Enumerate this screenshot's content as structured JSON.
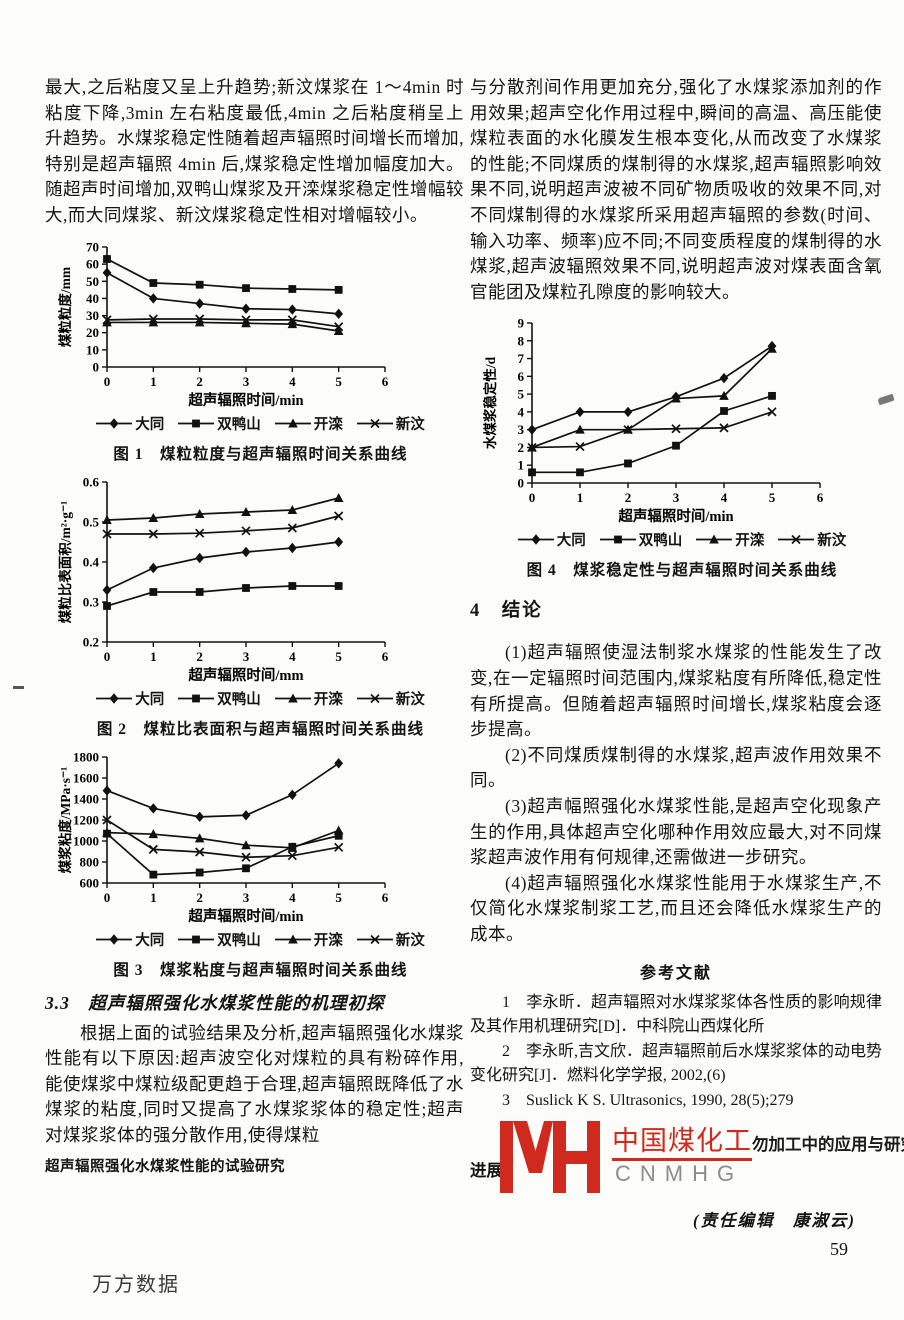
{
  "left": {
    "para1": "最大,之后粘度又呈上升趋势;新汶煤浆在 1～4min 时粘度下降,3min 左右粘度最低,4min 之后粘度稍呈上升趋势。水煤浆稳定性随着超声辐照时间增长而增加,特别是超声辐照 4min 后,煤浆稳定性增加幅度加大。随超声时间增加,双鸭山煤浆及开滦煤浆稳定性增幅较大,而大同煤浆、新汶煤浆稳定性相对增幅较小。",
    "fig1_caption": "图 1　煤粒粒度与超声辐照时间关系曲线",
    "fig2_caption": "图 2　煤粒比表面积与超声辐照时间关系曲线",
    "fig3_caption": "图 3　煤浆粘度与超声辐照时间关系曲线",
    "sec33_heading": "3.3　超声辐照强化水煤浆性能的机理初探",
    "para2": "根据上面的试验结果及分析,超声辐照强化水煤浆性能有以下原因:超声波空化对煤粒的具有粉碎作用,能使煤浆中煤粒级配更趋于合理,超声辐照既降低了水煤浆的粘度,同时又提高了水煤浆浆体的稳定性;超声对煤浆浆体的强分散作用,使得煤粒",
    "footnote": "超声辐照强化水煤浆性能的试验研究",
    "watermark": "万方数据"
  },
  "right": {
    "para1": "与分散剂间作用更加充分,强化了水煤浆添加剂的作用效果;超声空化作用过程中,瞬间的高温、高压能使煤粒表面的水化膜发生根本变化,从而改变了水煤浆的性能;不同煤质的煤制得的水煤浆,超声辐照影响效果不同,说明超声波被不同矿物质吸收的效果不同,对不同煤制得的水煤浆所采用超声辐照的参数(时间、输入功率、频率)应不同;不同变质程度的煤制得的水煤浆,超声波辐照效果不同,说明超声波对煤表面含氧官能团及煤粒孔隙度的影响较大。",
    "fig4_caption": "图 4　煤浆稳定性与超声辐照时间关系曲线",
    "sec4_heading": "4　结论",
    "conclusions": [
      "(1)超声辐照使湿法制浆水煤浆的性能发生了改变,在一定辐照时间范围内,煤浆粘度有所降低,稳定性有所提高。但随着超声辐照时间增长,煤浆粘度会逐步提高。",
      "(2)不同煤质煤制得的水煤浆,超声波作用效果不同。",
      "(3)超声幅照强化水煤浆性能,是超声空化现象产生的作用,具体超声空化哪种作用效应最大,对不同煤浆超声波作用有何规律,还需做进一步研究。",
      "(4)超声辐照强化水煤浆性能用于水煤浆生产,不仅简化水煤浆制浆工艺,而且还会降低水煤浆生产的成本。"
    ],
    "refs_heading": "参考文献",
    "refs": [
      "1　李永昕．超声辐照对水煤浆浆体各性质的影响规律及其作用机理研究[D]．中科院山西煤化所",
      "2　李永昕,吉文欣．超声辐照前后水煤浆浆体的动电势变化研究[J]．燃料化学学报, 2002,(6)",
      "3　Suslick K S. Ultrasonics, 1990, 28(5);279"
    ],
    "logo": {
      "left_fragment": "进展",
      "brand_cn": "中国煤化工",
      "brand_en": "CNMHG",
      "right_fragment": "勿加工中的应用与研究",
      "red": "#d02a1e",
      "gray": "#8c8c8c"
    },
    "editor_line": "(责任编辑　康淑云)",
    "page_number": "59"
  },
  "chart_data": [
    {
      "type": "line",
      "title": "图 1 煤粒粒度与超声辐照时间关系曲线",
      "xlabel": "超声辐照时间/min",
      "ylabel": "煤粒粒度/mm",
      "x": [
        0,
        1,
        2,
        3,
        4,
        5
      ],
      "xlim": [
        0,
        6
      ],
      "ylim": [
        0,
        70
      ],
      "xticks": [
        0,
        1,
        2,
        3,
        4,
        5,
        6
      ],
      "yticks": [
        0,
        10,
        20,
        30,
        40,
        50,
        60,
        70
      ],
      "grid": false,
      "legend_position": "bottom",
      "series": [
        {
          "name": "大同",
          "marker": "diamond",
          "values": [
            55,
            40,
            37,
            34,
            33.5,
            31
          ]
        },
        {
          "name": "双鸭山",
          "marker": "square",
          "values": [
            63,
            49,
            48,
            46,
            45.5,
            45
          ]
        },
        {
          "name": "开滦",
          "marker": "triangle",
          "values": [
            26,
            26,
            26,
            25.5,
            25,
            21
          ]
        },
        {
          "name": "新汶",
          "marker": "x",
          "values": [
            27.5,
            28,
            28,
            27.5,
            27.5,
            23.5
          ]
        }
      ]
    },
    {
      "type": "line",
      "title": "图 2 煤粒比表面积与超声辐照时间关系曲线",
      "xlabel": "超声辐照时间/mm",
      "ylabel": "煤粒比表面积/m²·g⁻¹",
      "x": [
        0,
        1,
        2,
        3,
        4,
        5
      ],
      "xlim": [
        0,
        6
      ],
      "ylim": [
        0.2,
        0.6
      ],
      "xticks": [
        0,
        1,
        2,
        3,
        4,
        5,
        6
      ],
      "yticks": [
        0.2,
        0.3,
        0.4,
        0.5,
        0.6
      ],
      "grid": false,
      "legend_position": "bottom",
      "series": [
        {
          "name": "大同",
          "marker": "diamond",
          "values": [
            0.33,
            0.385,
            0.41,
            0.425,
            0.435,
            0.45
          ]
        },
        {
          "name": "双鸭山",
          "marker": "square",
          "values": [
            0.29,
            0.325,
            0.325,
            0.335,
            0.34,
            0.34
          ]
        },
        {
          "name": "开滦",
          "marker": "triangle",
          "values": [
            0.505,
            0.51,
            0.52,
            0.525,
            0.53,
            0.56
          ]
        },
        {
          "name": "新汶",
          "marker": "x",
          "values": [
            0.47,
            0.47,
            0.472,
            0.478,
            0.485,
            0.515
          ]
        }
      ]
    },
    {
      "type": "line",
      "title": "图 3 煤浆粘度与超声辐照时间关系曲线",
      "xlabel": "超声辐照时间/min",
      "ylabel": "煤浆粘度/MPa·s⁻¹",
      "x": [
        0,
        1,
        2,
        3,
        4,
        5
      ],
      "xlim": [
        0,
        6
      ],
      "ylim": [
        600,
        1800
      ],
      "xticks": [
        0,
        1,
        2,
        3,
        4,
        5,
        6
      ],
      "yticks": [
        600,
        800,
        1000,
        1200,
        1400,
        1600,
        1800
      ],
      "grid": false,
      "legend_position": "bottom",
      "series": [
        {
          "name": "大同",
          "marker": "diamond",
          "values": [
            1480,
            1310,
            1230,
            1245,
            1440,
            1740
          ]
        },
        {
          "name": "双鸭山",
          "marker": "square",
          "values": [
            1070,
            680,
            700,
            740,
            945,
            1050
          ]
        },
        {
          "name": "开滦",
          "marker": "triangle",
          "values": [
            1080,
            1065,
            1025,
            960,
            935,
            1100
          ]
        },
        {
          "name": "新汶",
          "marker": "x",
          "values": [
            1200,
            920,
            895,
            845,
            860,
            940
          ]
        }
      ]
    },
    {
      "type": "line",
      "title": "图 4 煤浆稳定性与超声辐照时间关系曲线",
      "xlabel": "超声辐照时间/min",
      "ylabel": "水煤浆稳定性/d",
      "x": [
        0,
        1,
        2,
        3,
        4,
        5
      ],
      "xlim": [
        0,
        6
      ],
      "ylim": [
        0,
        9
      ],
      "xticks": [
        0,
        1,
        2,
        3,
        4,
        5,
        6
      ],
      "yticks": [
        0,
        1,
        2,
        3,
        4,
        5,
        6,
        7,
        8,
        9
      ],
      "grid": false,
      "legend_position": "bottom",
      "series": [
        {
          "name": "大同",
          "marker": "diamond",
          "values": [
            3,
            4,
            4,
            4.85,
            5.9,
            7.7
          ]
        },
        {
          "name": "双鸭山",
          "marker": "square",
          "values": [
            0.6,
            0.6,
            1.1,
            2.1,
            4.05,
            4.9
          ]
        },
        {
          "name": "开滦",
          "marker": "triangle",
          "values": [
            2,
            3,
            3,
            4.75,
            4.9,
            7.55
          ]
        },
        {
          "name": "新汶",
          "marker": "x",
          "values": [
            2,
            2.05,
            3,
            3.05,
            3.1,
            4
          ]
        }
      ]
    }
  ]
}
